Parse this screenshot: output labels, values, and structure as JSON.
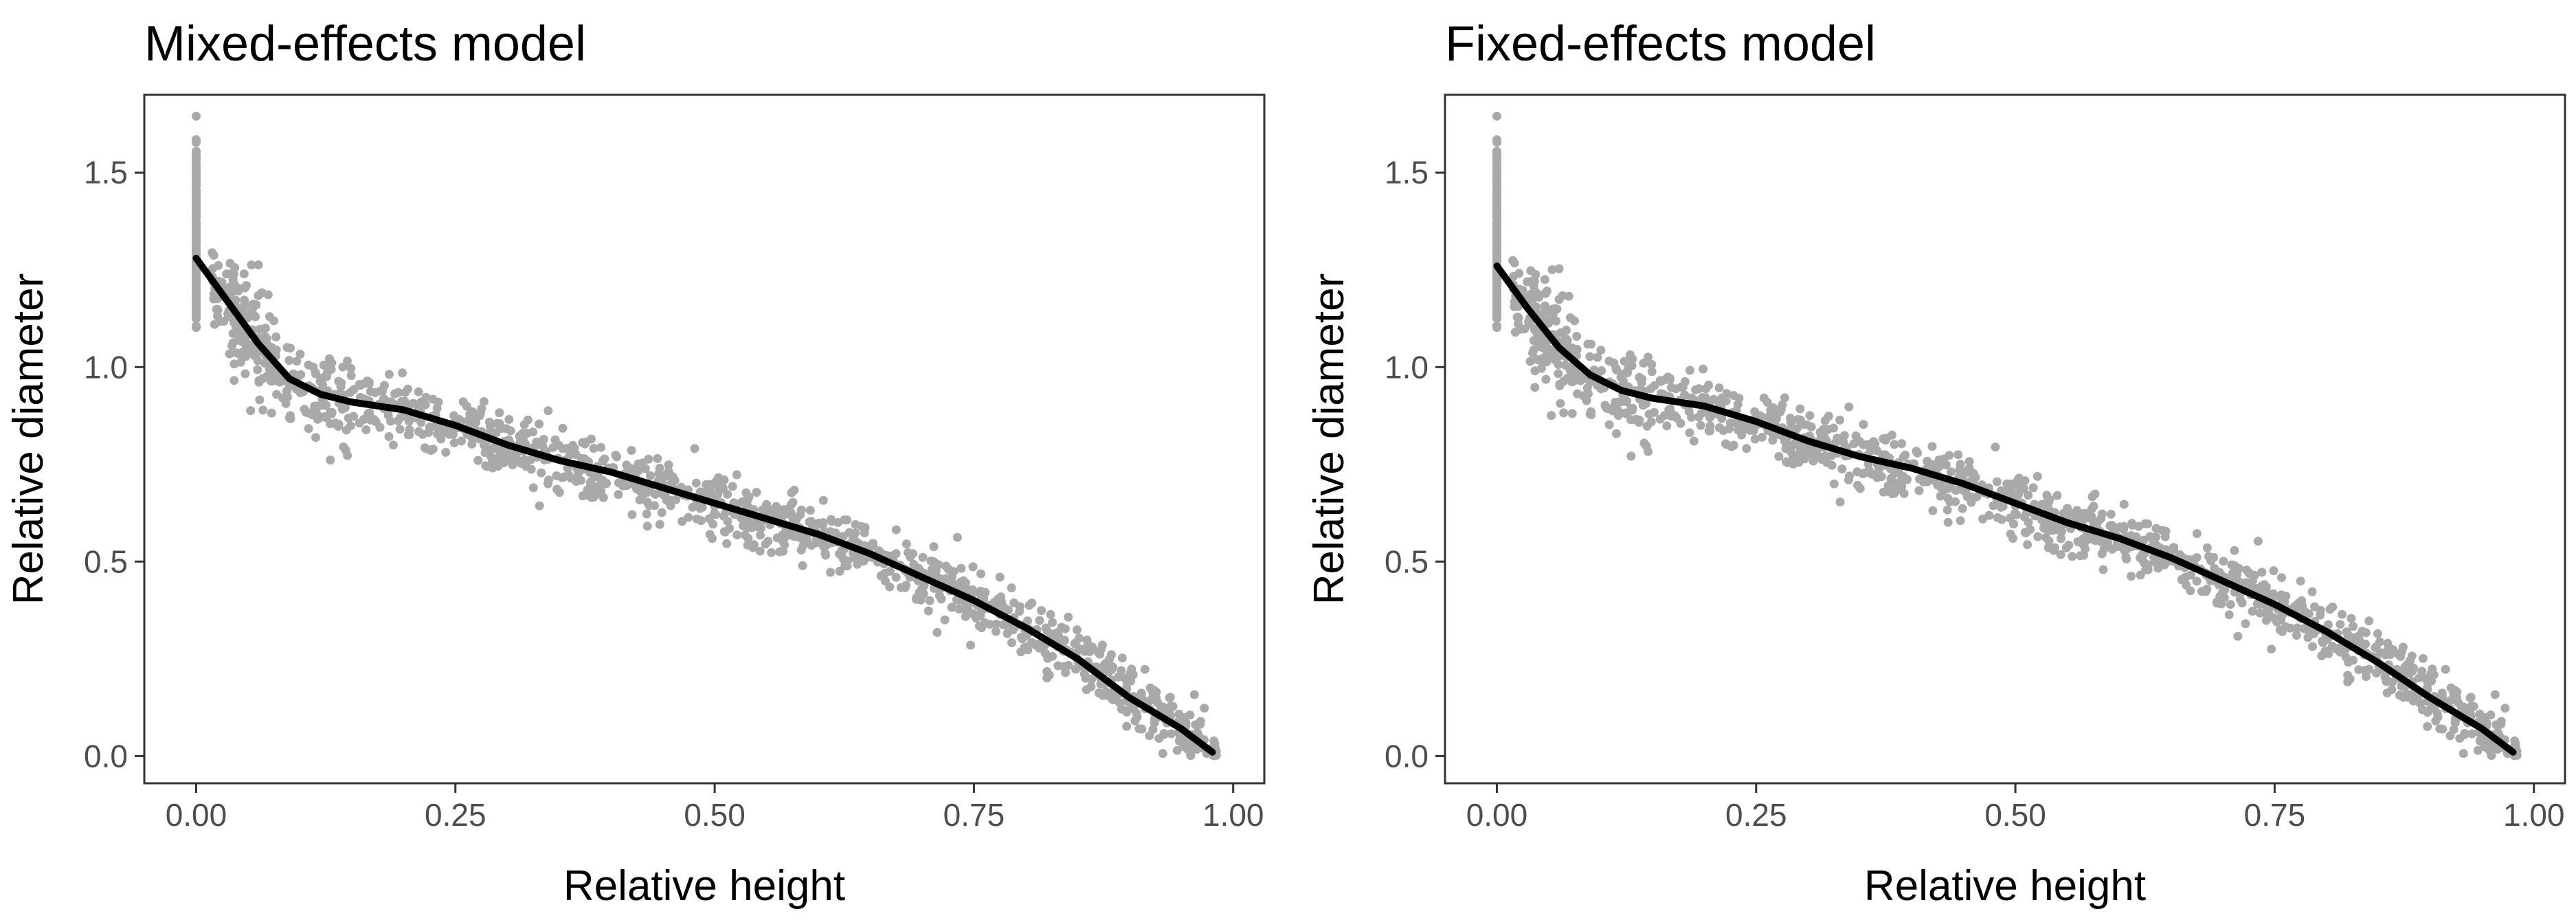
{
  "figure": {
    "background": "#ffffff",
    "point_color": "#a9a9a9",
    "line_color": "#000000",
    "frame_color": "#333333",
    "tick_text_color": "#4d4d4d"
  },
  "chart_data": [
    {
      "type": "scatter",
      "title": "Mixed-effects model",
      "xlabel": "Relative height",
      "ylabel": "Relative diameter",
      "xlim": [
        -0.05,
        1.03
      ],
      "ylim": [
        -0.07,
        1.7
      ],
      "xticks": [
        0.0,
        0.25,
        0.5,
        0.75,
        1.0
      ],
      "xtick_labels": [
        "0.00",
        "0.25",
        "0.50",
        "0.75",
        "1.00"
      ],
      "yticks": [
        0.0,
        0.5,
        1.0,
        1.5
      ],
      "ytick_labels": [
        "0.0",
        "0.5",
        "1.0",
        "1.5"
      ],
      "grid": false,
      "series": [
        {
          "name": "observations",
          "kind": "points",
          "n_points": 1500,
          "seed": 11
        },
        {
          "name": "fitted curve",
          "kind": "line",
          "x": [
            0.0,
            0.03,
            0.06,
            0.09,
            0.12,
            0.15,
            0.2,
            0.25,
            0.3,
            0.35,
            0.4,
            0.45,
            0.5,
            0.55,
            0.6,
            0.65,
            0.7,
            0.75,
            0.8,
            0.85,
            0.9,
            0.95,
            0.98
          ],
          "y": [
            1.28,
            1.17,
            1.06,
            0.97,
            0.93,
            0.91,
            0.89,
            0.85,
            0.8,
            0.76,
            0.73,
            0.69,
            0.65,
            0.61,
            0.57,
            0.52,
            0.46,
            0.4,
            0.33,
            0.25,
            0.15,
            0.07,
            0.01
          ]
        }
      ]
    },
    {
      "type": "scatter",
      "title": "Fixed-effects model",
      "xlabel": "Relative height",
      "ylabel": "Relative diameter",
      "xlim": [
        -0.05,
        1.03
      ],
      "ylim": [
        -0.07,
        1.7
      ],
      "xticks": [
        0.0,
        0.25,
        0.5,
        0.75,
        1.0
      ],
      "xtick_labels": [
        "0.00",
        "0.25",
        "0.50",
        "0.75",
        "1.00"
      ],
      "yticks": [
        0.0,
        0.5,
        1.0,
        1.5
      ],
      "ytick_labels": [
        "0.0",
        "0.5",
        "1.0",
        "1.5"
      ],
      "grid": false,
      "series": [
        {
          "name": "observations",
          "kind": "points",
          "n_points": 1500,
          "seed": 11
        },
        {
          "name": "fitted curve",
          "kind": "line",
          "x": [
            0.0,
            0.03,
            0.06,
            0.09,
            0.12,
            0.15,
            0.2,
            0.25,
            0.3,
            0.35,
            0.4,
            0.45,
            0.5,
            0.55,
            0.6,
            0.65,
            0.7,
            0.75,
            0.8,
            0.85,
            0.9,
            0.95,
            0.98
          ],
          "y": [
            1.26,
            1.15,
            1.05,
            0.98,
            0.94,
            0.92,
            0.9,
            0.86,
            0.81,
            0.77,
            0.74,
            0.7,
            0.65,
            0.6,
            0.56,
            0.51,
            0.45,
            0.39,
            0.32,
            0.24,
            0.15,
            0.07,
            0.01
          ]
        }
      ]
    }
  ]
}
